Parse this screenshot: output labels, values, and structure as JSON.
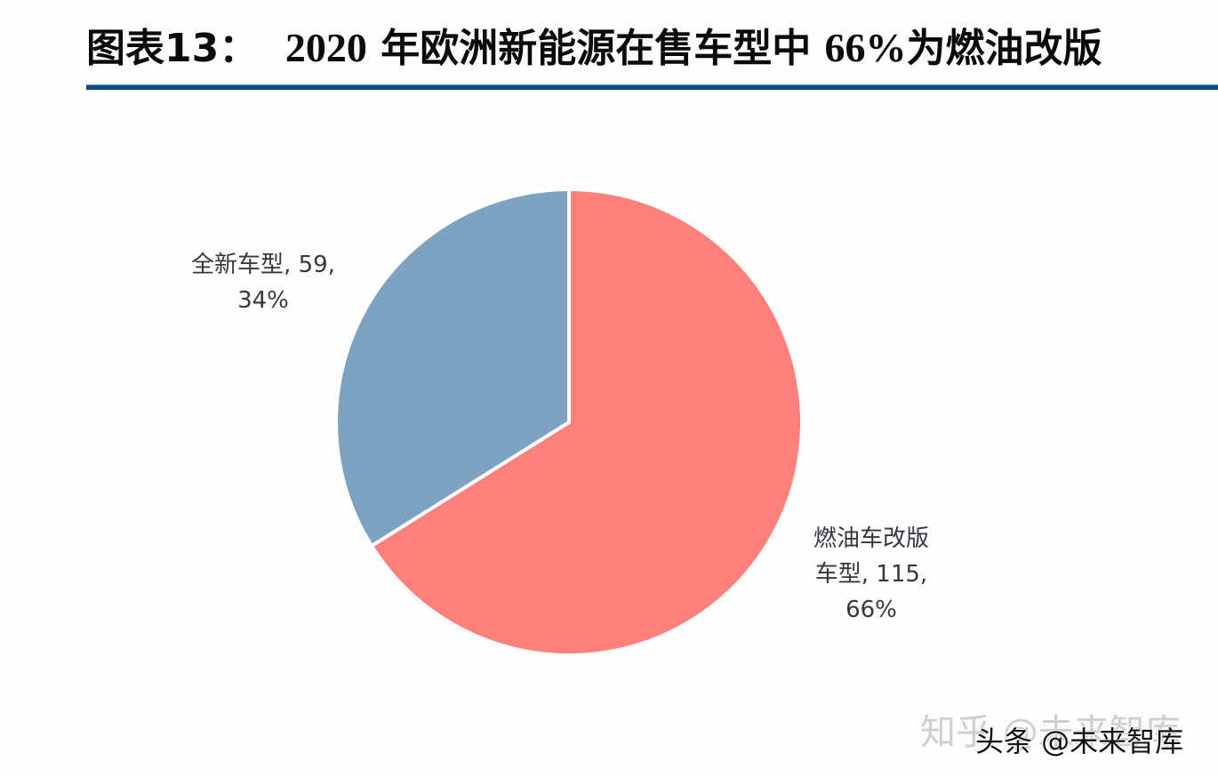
{
  "header": {
    "figure_label": "图表13：",
    "title_year": "2020",
    "title_mid": "年欧洲新能源在售车型中",
    "title_pct": "66%",
    "title_end": "为燃油改版",
    "full_title": "图表13： 2020 年欧洲新能源在售车型中 66%为燃油改版",
    "rule_color": "#0b4a8b"
  },
  "labels": {
    "new_model": {
      "line1": "全新车型, 59,",
      "line2": "34%"
    },
    "ice_conversion": {
      "line1": "燃油车改版",
      "line2": "车型, 115,",
      "line3": "66%"
    }
  },
  "watermark": {
    "zhihu": "知乎 @未来智库",
    "toutiao": "头条 @未来智库"
  },
  "colors": {
    "new_model": "#7ea3c2",
    "ice_conversion": "#ff7f7b",
    "separator": "#ffffff"
  },
  "chart_data": {
    "type": "pie",
    "title": "2020年欧洲新能源在售车型中66%为燃油改版",
    "categories": [
      "燃油车改版车型",
      "全新车型"
    ],
    "values": [
      115,
      59
    ],
    "percentages": [
      66,
      34
    ],
    "colors": [
      "#ff7f7b",
      "#7ea3c2"
    ],
    "start_angle": "12 o'clock, clockwise",
    "data_labels": [
      "燃油车改版车型, 115, 66%",
      "全新车型, 59, 34%"
    ],
    "legend": "none (data labels beside slices)"
  }
}
